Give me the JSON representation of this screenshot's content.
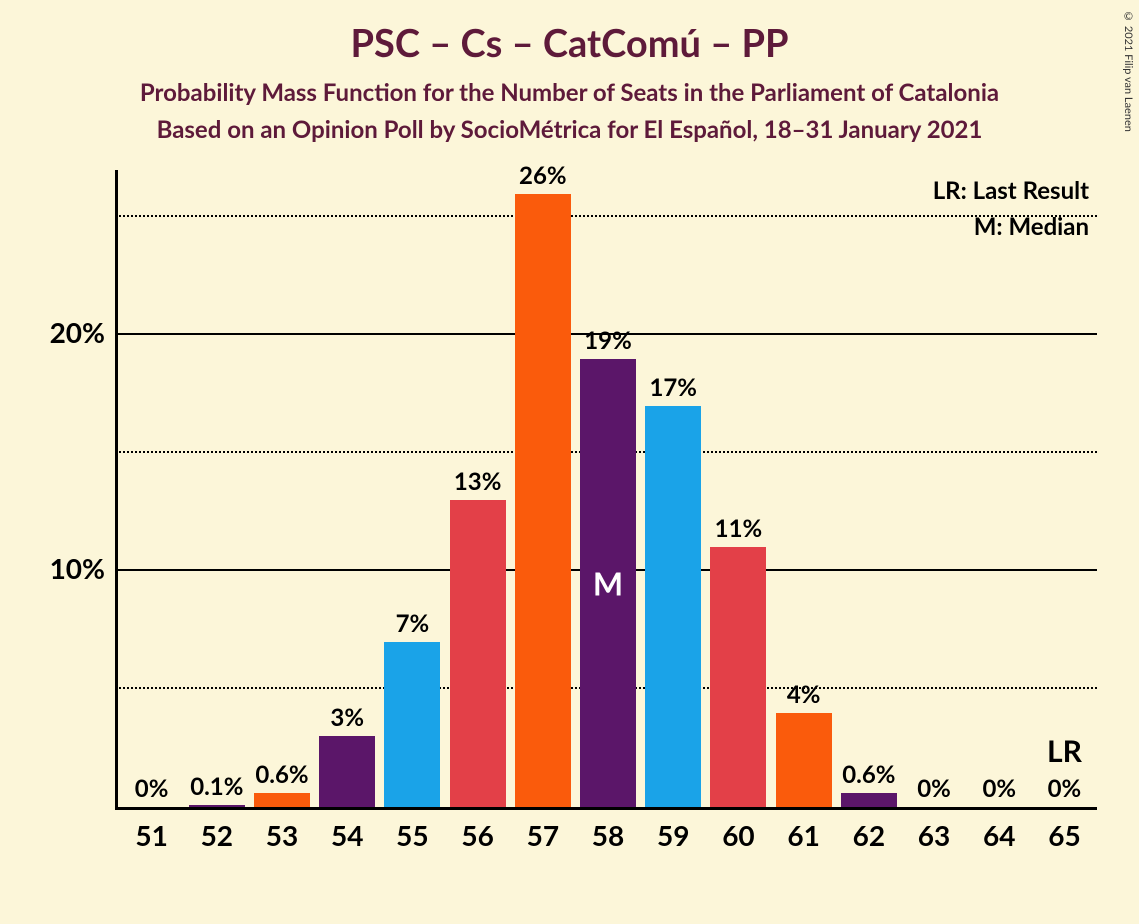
{
  "chart": {
    "type": "bar",
    "title": "PSC – Cs – CatComú – PP",
    "subtitle1": "Probability Mass Function for the Number of Seats in the Parliament of Catalonia",
    "subtitle2": "Based on an Opinion Poll by SocioMétrica for El Español, 18–31 January 2021",
    "title_fontsize": 38,
    "subtitle_fontsize": 24,
    "title_color": "#5e1a3a",
    "background_color": "#fcf6d9",
    "axis_color": "#000000",
    "tick_fontsize": 28,
    "bar_label_fontsize": 24,
    "legend": {
      "lr_text": "LR: Last Result",
      "m_text": "M: Median",
      "fontsize": 24,
      "color": "#000000"
    },
    "lr_marker": {
      "text": "LR",
      "fontsize": 30
    },
    "copyright": "© 2021 Filip van Laenen",
    "ylim": [
      0,
      27
    ],
    "y_ticks": [
      {
        "value": 5,
        "label": "",
        "style": "dotted"
      },
      {
        "value": 10,
        "label": "10%",
        "style": "solid"
      },
      {
        "value": 15,
        "label": "",
        "style": "dotted"
      },
      {
        "value": 20,
        "label": "20%",
        "style": "solid"
      },
      {
        "value": 25,
        "label": "",
        "style": "dotted"
      }
    ],
    "categories": [
      "51",
      "52",
      "53",
      "54",
      "55",
      "56",
      "57",
      "58",
      "59",
      "60",
      "61",
      "62",
      "63",
      "64",
      "65"
    ],
    "bars": [
      {
        "label": "0%",
        "value": 0,
        "color": "#fa5b0c"
      },
      {
        "label": "0.1%",
        "value": 0.1,
        "color": "#5b1669"
      },
      {
        "label": "0.6%",
        "value": 0.6,
        "color": "#fa5b0c"
      },
      {
        "label": "3%",
        "value": 3,
        "color": "#5b1669"
      },
      {
        "label": "7%",
        "value": 7,
        "color": "#1aa3e8"
      },
      {
        "label": "13%",
        "value": 13,
        "color": "#e34048"
      },
      {
        "label": "26%",
        "value": 26,
        "color": "#fa5b0c"
      },
      {
        "label": "19%",
        "value": 19,
        "color": "#5b1669",
        "inner_label": "M",
        "inner_fontsize": 32
      },
      {
        "label": "17%",
        "value": 17,
        "color": "#1aa3e8"
      },
      {
        "label": "11%",
        "value": 11,
        "color": "#e34048"
      },
      {
        "label": "4%",
        "value": 4,
        "color": "#fa5b0c"
      },
      {
        "label": "0.6%",
        "value": 0.6,
        "color": "#5b1669"
      },
      {
        "label": "0%",
        "value": 0,
        "color": "#1aa3e8"
      },
      {
        "label": "0%",
        "value": 0,
        "color": "#e34048"
      },
      {
        "label": "0%",
        "value": 0,
        "color": "#fa5b0c"
      }
    ],
    "lr_position_index": 14
  }
}
